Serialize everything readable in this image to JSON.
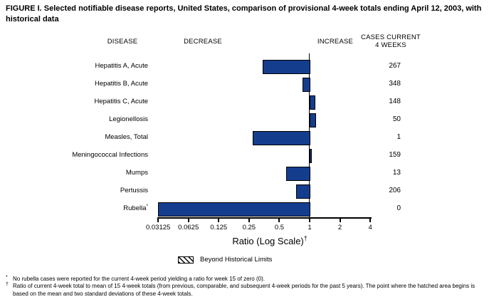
{
  "title": "FIGURE I. Selected notifiable disease reports, United States, comparison of provisional 4-week totals ending April 12, 2003, with historical data",
  "headers": {
    "disease": "DISEASE",
    "decrease": "DECREASE",
    "increase": "INCREASE",
    "cases_line1": "CASES CURRENT",
    "cases_line2": "4 WEEKS"
  },
  "chart_data": {
    "type": "bar",
    "orientation": "horizontal",
    "x_scale": "log2",
    "xlabel": "Ratio (Log Scale)",
    "xlabel_superscript": "†",
    "xlim": [
      0.03125,
      4
    ],
    "baseline_ratio": 1,
    "x_ticks": [
      0.03125,
      0.0625,
      0.125,
      0.25,
      0.5,
      1,
      2,
      4
    ],
    "x_tick_labels": [
      "0.03125",
      "0.0625",
      "0.125",
      "0.25",
      "0.5",
      "1",
      "2",
      "4"
    ],
    "bar_color": "#143d8e",
    "bar_border_color": "#000000",
    "rows": [
      {
        "label": "Hepatitis A, Acute",
        "label_superscript": "",
        "ratio": 0.34,
        "cases": "267"
      },
      {
        "label": "Hepatitis B, Acute",
        "label_superscript": "",
        "ratio": 0.85,
        "cases": "348"
      },
      {
        "label": "Hepatitis C, Acute",
        "label_superscript": "",
        "ratio": 1.12,
        "cases": "148"
      },
      {
        "label": "Legionellosis",
        "label_superscript": "",
        "ratio": 1.13,
        "cases": "50"
      },
      {
        "label": "Measles, Total",
        "label_superscript": "",
        "ratio": 0.27,
        "cases": "1"
      },
      {
        "label": "Meningococcal Infections",
        "label_superscript": "",
        "ratio": 1.04,
        "cases": "159"
      },
      {
        "label": "Mumps",
        "label_superscript": "",
        "ratio": 0.58,
        "cases": "13"
      },
      {
        "label": "Pertussis",
        "label_superscript": "",
        "ratio": 0.73,
        "cases": "206"
      },
      {
        "label": "Rubella",
        "label_superscript": "*",
        "ratio": 0,
        "cases": "0"
      }
    ]
  },
  "legend": {
    "swatch": "diagonal-hatch",
    "label": "Beyond Historical Limits"
  },
  "footnotes": [
    {
      "marker": "*",
      "text": "No rubella cases were reported for the current 4-week period yielding a ratio for week 15 of zero (0)."
    },
    {
      "marker": "†",
      "text": "Ratio of current 4-week total to mean of 15 4-week totals (from previous, comparable, and subsequent 4-week periods for the past 5 years). The point where the hatched area begins is based on the mean and two standard deviations of these 4-week totals."
    }
  ]
}
